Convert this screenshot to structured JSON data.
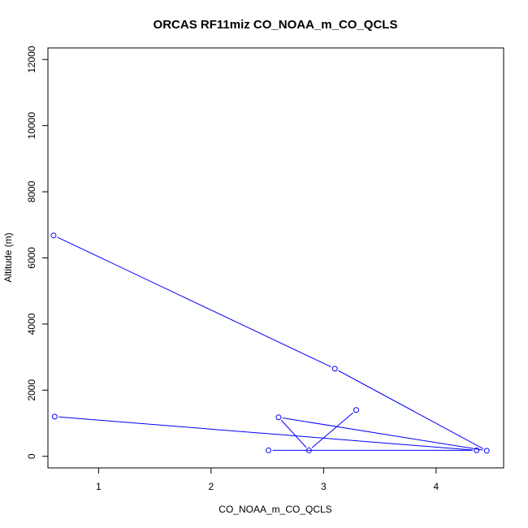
{
  "chart_data": {
    "type": "line",
    "title": "ORCAS RF11miz CO_NOAA_m_CO_QCLS",
    "xlabel": "CO_NOAA_m_CO_QCLS",
    "ylabel": "Altitude (m)",
    "xlim": [
      0.55,
      4.6
    ],
    "ylim": [
      -350,
      12350
    ],
    "x_ticks": [
      1,
      2,
      3,
      4
    ],
    "y_ticks": [
      0,
      2000,
      4000,
      6000,
      8000,
      10000,
      12000
    ],
    "grid": false,
    "series": [
      {
        "color": "#0000ff",
        "marker": "open-circle",
        "x": [
          0.6,
          3.1,
          4.45,
          2.6,
          2.87,
          3.29
        ],
        "y": [
          6680,
          2650,
          170,
          1180,
          180,
          1400
        ]
      },
      {
        "color": "#0000ff",
        "marker": "open-circle",
        "x": [
          0.61,
          4.36,
          2.51
        ],
        "y": [
          1200,
          180,
          180
        ]
      }
    ]
  }
}
